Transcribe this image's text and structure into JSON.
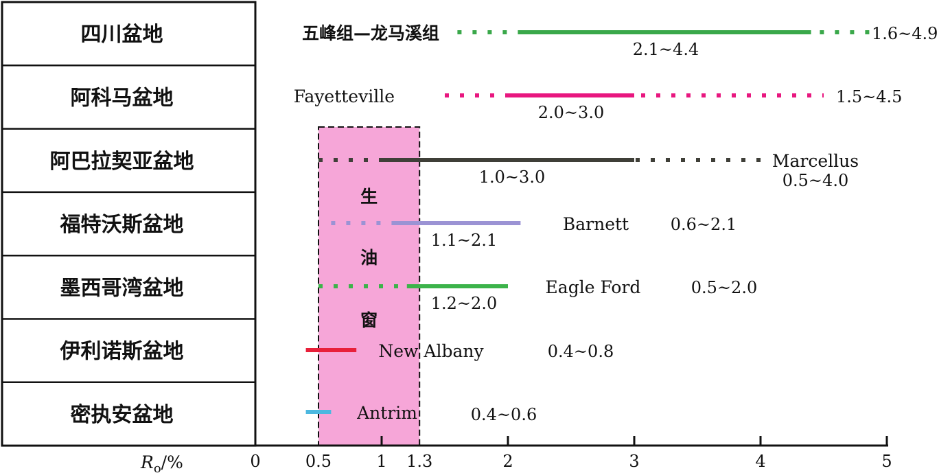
{
  "chart_data": {
    "type": "range",
    "axis": {
      "label_main": "R",
      "label_sub": "o",
      "label_unit": "/%",
      "xlim": [
        0,
        5
      ],
      "ticks": [
        {
          "value": 0,
          "label": "0"
        },
        {
          "value": 0.5,
          "label": "0.5"
        },
        {
          "value": 1,
          "label": "1"
        },
        {
          "value": 1.3,
          "label": "1.3"
        },
        {
          "value": 2,
          "label": "2"
        },
        {
          "value": 3,
          "label": "3"
        },
        {
          "value": 4,
          "label": "4"
        },
        {
          "value": 5,
          "label": "5"
        }
      ]
    },
    "oil_window": {
      "from": 0.5,
      "to": 1.3,
      "chars": [
        "生",
        "油",
        "窗"
      ],
      "color": "#f6a6d8"
    },
    "rows": [
      {
        "basin": "四川盆地",
        "formation": "五峰组—龙马溪组",
        "color": "#3aa84a",
        "dotted": [
          1.6,
          4.9
        ],
        "solid": [
          2.1,
          4.4
        ],
        "solid_label": "2.1~4.4",
        "range_label": "1.6~4.9"
      },
      {
        "basin": "阿科马盆地",
        "formation": "Fayetteville",
        "color": "#e8177f",
        "dotted": [
          1.5,
          4.5
        ],
        "solid": [
          2.0,
          3.0
        ],
        "solid_label": "2.0~3.0",
        "range_label": "1.5~4.5"
      },
      {
        "basin": "阿巴拉契亚盆地",
        "formation": "Marcellus",
        "color": "#3f3f38",
        "dotted": [
          0.5,
          4.0
        ],
        "solid": [
          1.0,
          3.0
        ],
        "solid_label": "1.0~3.0",
        "range_label": "0.5~4.0"
      },
      {
        "basin": "福特沃斯盆地",
        "formation": "Barnett",
        "color": "#9b93d4",
        "dotted": [
          0.6,
          2.1
        ],
        "solid": [
          1.1,
          2.1
        ],
        "solid_label": "1.1~2.1",
        "range_label": "0.6~2.1"
      },
      {
        "basin": "墨西哥湾盆地",
        "formation": "Eagle Ford",
        "color": "#3cb34a",
        "dotted": [
          0.5,
          2.0
        ],
        "solid": [
          1.2,
          2.0
        ],
        "solid_label": "1.2~2.0",
        "range_label": "0.5~2.0"
      },
      {
        "basin": "伊利诺斯盆地",
        "formation": "New Albany",
        "color": "#e8203a",
        "dotted": null,
        "solid": [
          0.4,
          0.8
        ],
        "solid_label": "",
        "range_label": "0.4~0.8"
      },
      {
        "basin": "密执安盆地",
        "formation": "Antrim",
        "color": "#4cb8e0",
        "dotted": null,
        "solid": [
          0.4,
          0.6
        ],
        "solid_label": "",
        "range_label": "0.4~0.6"
      }
    ]
  }
}
